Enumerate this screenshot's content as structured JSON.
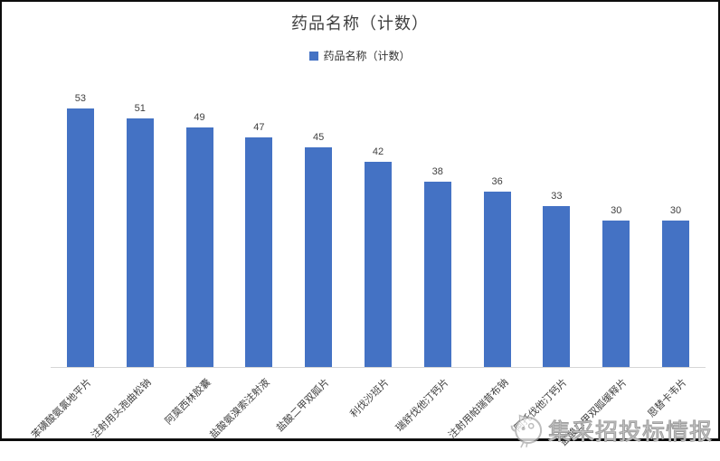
{
  "chart_data": {
    "type": "bar",
    "title": "药品名称（计数）",
    "legend": [
      "药品名称（计数）"
    ],
    "legend_position": "top",
    "categories": [
      "苯磺酸氨氯地平片",
      "注射用头孢曲松钠",
      "阿莫西林胶囊",
      "盐酸氨溴索注射液",
      "盐酸二甲双胍片",
      "利伐沙班片",
      "瑞舒伐他汀钙片",
      "注射用帕瑞昔布钠",
      "阿托伐他汀钙片",
      "盐酸二甲双胍缓释片",
      "恩替卡韦片"
    ],
    "values": [
      53,
      51,
      49,
      47,
      45,
      42,
      38,
      36,
      33,
      30,
      30
    ],
    "xlabel": "",
    "ylabel": "",
    "ylim": [
      0,
      60
    ],
    "grid": false,
    "value_labels": true,
    "bar_color": "#4472C4",
    "axis_line_color": "#D6D6D6"
  },
  "watermark": {
    "text": "集采招投标情报"
  }
}
